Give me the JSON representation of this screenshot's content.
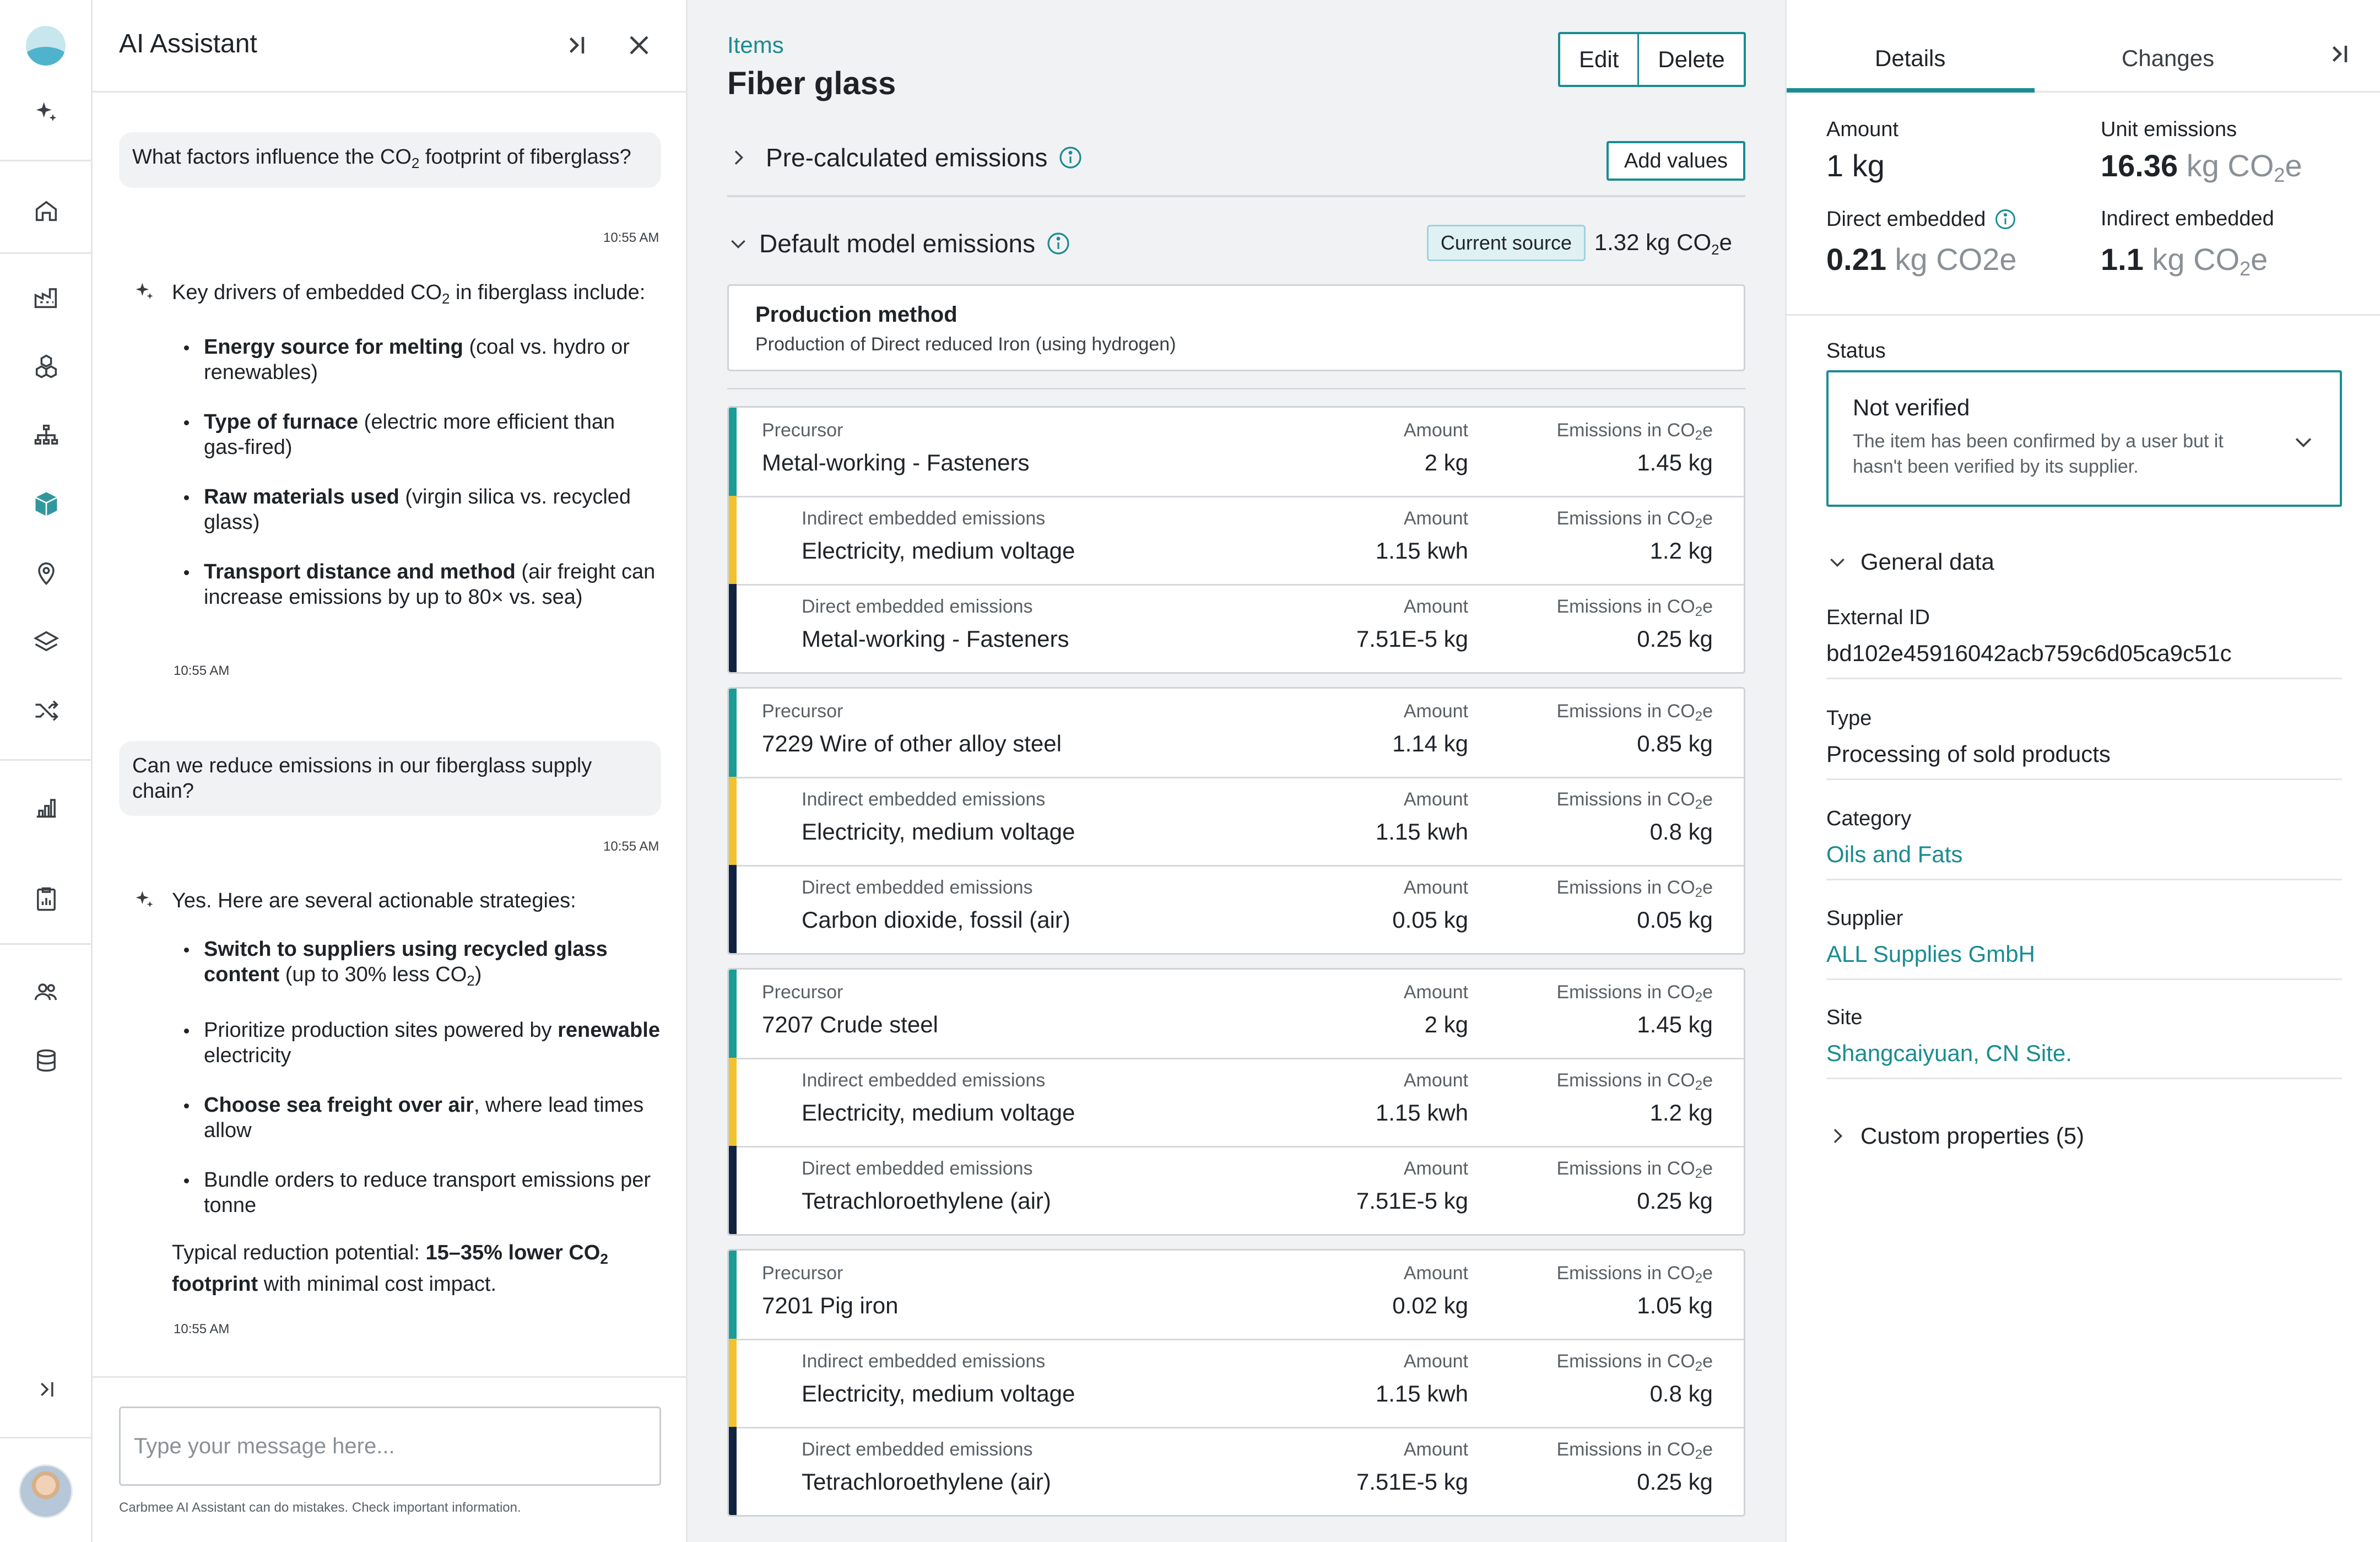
{
  "assistant": {
    "title": "AI Assistant",
    "messages": [
      {
        "kind": "user",
        "text_pre": "What factors influence the CO",
        "text_sub": "2",
        "text_post": " footprint of fiberglass?",
        "time": "10:55 AM"
      },
      {
        "kind": "ai",
        "intro_pre": "Key drivers of embedded CO",
        "intro_sub": "2",
        "intro_post": " in fiberglass include:",
        "bullets": [
          {
            "bold": "Energy source for melting",
            "rest": " (coal vs. hydro or renewables)"
          },
          {
            "bold": "Type of furnace",
            "rest": " (electric more efficient than gas-fired)"
          },
          {
            "bold": "Raw materials used",
            "rest": " (virgin silica vs. recycled glass)"
          },
          {
            "bold": "Transport distance and method",
            "rest": " (air freight can increase emissions by up to 80× vs. sea)"
          }
        ],
        "time": "10:55 AM"
      },
      {
        "kind": "user",
        "text": "Can we reduce emissions in our fiberglass supply chain?",
        "time": "10:55 AM"
      },
      {
        "kind": "ai",
        "intro": "Yes. Here are several actionable strategies:",
        "bullets2": [
          {
            "bold": "Switch to suppliers using recycled glass content",
            "rest_pre": " (up to 30% less CO",
            "rest_sub": "2",
            "rest_post": ")"
          },
          {
            "pre": "Prioritize production sites powered by ",
            "bold": "renewable",
            "rest": " electricity"
          },
          {
            "bold": "Choose sea freight over air",
            "rest": ", where lead times allow"
          },
          {
            "pre": "Bundle orders to reduce transport emissions per tonne"
          }
        ],
        "summary_pre": "Typical reduction potential: ",
        "summary_bold_pre": "15–35% lower CO",
        "summary_sub": "2",
        "summary_bold_post": " footprint",
        "summary_post": " with minimal cost impact.",
        "time": "10:55 AM"
      }
    ],
    "composer_placeholder": "Type your message here...",
    "disclaimer": "Carbmee AI Assistant can do mistakes. Check important information."
  },
  "main": {
    "breadcrumb": "Items",
    "title": "Fiber glass",
    "edit_label": "Edit",
    "delete_label": "Delete",
    "precalc_label": "Pre-calculated emissions",
    "add_values_label": "Add values",
    "default_model_label": "Default model emissions",
    "current_source_label": "Current source",
    "model_value_pre": "1.32 kg CO",
    "model_value_sub": "2",
    "model_value_post": "e",
    "production_method_title": "Production method",
    "production_method_desc": "Production of Direct reduced Iron (using hydrogen)",
    "amount_label": "Amount",
    "emissions_label_pre": "Emissions in CO",
    "emissions_label_sub": "2",
    "emissions_label_post": "e",
    "groups": [
      {
        "rows": [
          {
            "type": "Precursor",
            "name": "Metal-working - Fasteners",
            "amount": "2 kg",
            "emissions": "1.45 kg"
          },
          {
            "type": "Indirect embedded emissions",
            "name": "Electricity, medium voltage",
            "amount": "1.15 kwh",
            "emissions": "1.2 kg"
          },
          {
            "type": "Direct embedded emissions",
            "name": "Metal-working - Fasteners",
            "amount": "7.51E-5 kg",
            "emissions": "0.25 kg"
          }
        ]
      },
      {
        "rows": [
          {
            "type": "Precursor",
            "name": "7229 Wire of other alloy steel",
            "amount": "1.14 kg",
            "emissions": "0.85 kg"
          },
          {
            "type": "Indirect embedded emissions",
            "name": "Electricity, medium voltage",
            "amount": "1.15 kwh",
            "emissions": "0.8 kg"
          },
          {
            "type": "Direct embedded emissions",
            "name": "Carbon dioxide, fossil (air)",
            "amount": "0.05 kg",
            "emissions": "0.05 kg"
          }
        ]
      },
      {
        "rows": [
          {
            "type": "Precursor",
            "name": "7207 Crude steel",
            "amount": "2 kg",
            "emissions": "1.45 kg"
          },
          {
            "type": "Indirect embedded emissions",
            "name": "Electricity, medium voltage",
            "amount": "1.15 kwh",
            "emissions": "1.2 kg"
          },
          {
            "type": "Direct embedded emissions",
            "name": "Tetrachloroethylene (air)",
            "amount": "7.51E-5 kg",
            "emissions": "0.25 kg"
          }
        ]
      },
      {
        "rows": [
          {
            "type": "Precursor",
            "name": "7201 Pig iron",
            "amount": "0.02 kg",
            "emissions": "1.05 kg"
          },
          {
            "type": "Indirect embedded emissions",
            "name": "Electricity, medium voltage",
            "amount": "1.15 kwh",
            "emissions": "0.8 kg"
          },
          {
            "type": "Direct embedded emissions",
            "name": "Tetrachloroethylene (air)",
            "amount": "7.51E-5 kg",
            "emissions": "0.25 kg"
          }
        ]
      }
    ]
  },
  "details": {
    "tab_details": "Details",
    "tab_changes": "Changes",
    "amount_label": "Amount",
    "amount_value": "1 kg",
    "unit_emissions_label": "Unit emissions",
    "unit_emissions_value": "16.36",
    "unit_emissions_unit_pre": " kg CO",
    "unit_emissions_unit_sub": "2",
    "unit_emissions_unit_post": "e",
    "direct_label": "Direct embedded",
    "direct_value": "0.21",
    "direct_unit": " kg CO2e",
    "indirect_label": "Indirect embedded",
    "indirect_value": "1.1",
    "indirect_unit_pre": " kg CO",
    "indirect_unit_sub": "2",
    "indirect_unit_post": "e",
    "status_label": "Status",
    "status_value": "Not verified",
    "status_desc": "The item has been confirmed by a user but it hasn't been verified by its supplier.",
    "general_data_label": "General data",
    "fields": [
      {
        "key": "External ID",
        "value": "bd102e45916042acb759c6d05ca9c51c",
        "link": false
      },
      {
        "key": "Type",
        "value": "Processing of sold products",
        "link": false
      },
      {
        "key": "Category",
        "value": "Oils and Fats",
        "link": true
      },
      {
        "key": "Supplier",
        "value": "ALL Supplies GmbH",
        "link": true
      },
      {
        "key": "Site",
        "value": "Shangcaiyuan, CN Site.",
        "link": true
      }
    ],
    "custom_properties_label": "Custom properties (5)"
  },
  "colors": {
    "accent": "#1a8c92",
    "precursor_bar": "#1a9c97",
    "indirect_bar": "#f2c12e",
    "direct_bar": "#0f2340"
  }
}
